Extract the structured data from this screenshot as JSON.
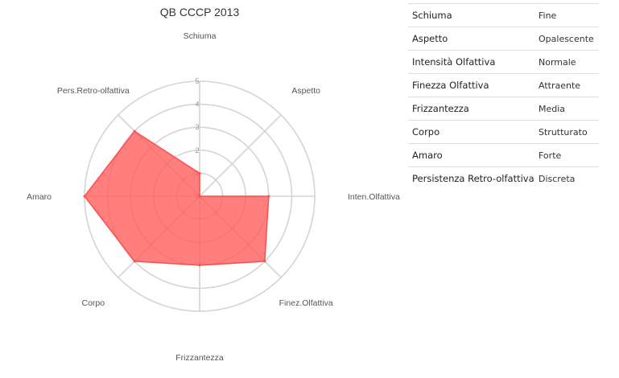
{
  "chart_data": {
    "type": "radar",
    "title": "QB CCCP 2013",
    "axes": [
      "Schiuma",
      "Aspetto",
      "Inten.Olfattiva",
      "Finez.Olfattiva",
      "Frizzantezza",
      "Corpo",
      "Amaro",
      "Pers.Retro-olfattiva"
    ],
    "values": [
      1,
      0,
      3,
      4,
      3,
      4,
      5,
      4
    ],
    "rlim": [
      0,
      5
    ],
    "ticks": [
      "0",
      "1",
      "2",
      "3",
      "4",
      "5"
    ],
    "grid": true,
    "colors": {
      "fill": "#ff5a5a",
      "stroke": "#ff4d4d",
      "grid": "#d4d4d4"
    }
  },
  "table": {
    "rows": [
      {
        "attribute": "Schiuma",
        "value": "Fine"
      },
      {
        "attribute": "Aspetto",
        "value": "Opalescente"
      },
      {
        "attribute": "Intensità  Olfattiva",
        "value": "Normale"
      },
      {
        "attribute": "Finezza Olfattiva",
        "value": "Attraente"
      },
      {
        "attribute": "Frizzantezza",
        "value": "Media"
      },
      {
        "attribute": "Corpo",
        "value": "Strutturato"
      },
      {
        "attribute": "Amaro",
        "value": "Forte"
      },
      {
        "attribute": "Persistenza Retro-olfattiva",
        "value": "Discreta"
      }
    ]
  }
}
